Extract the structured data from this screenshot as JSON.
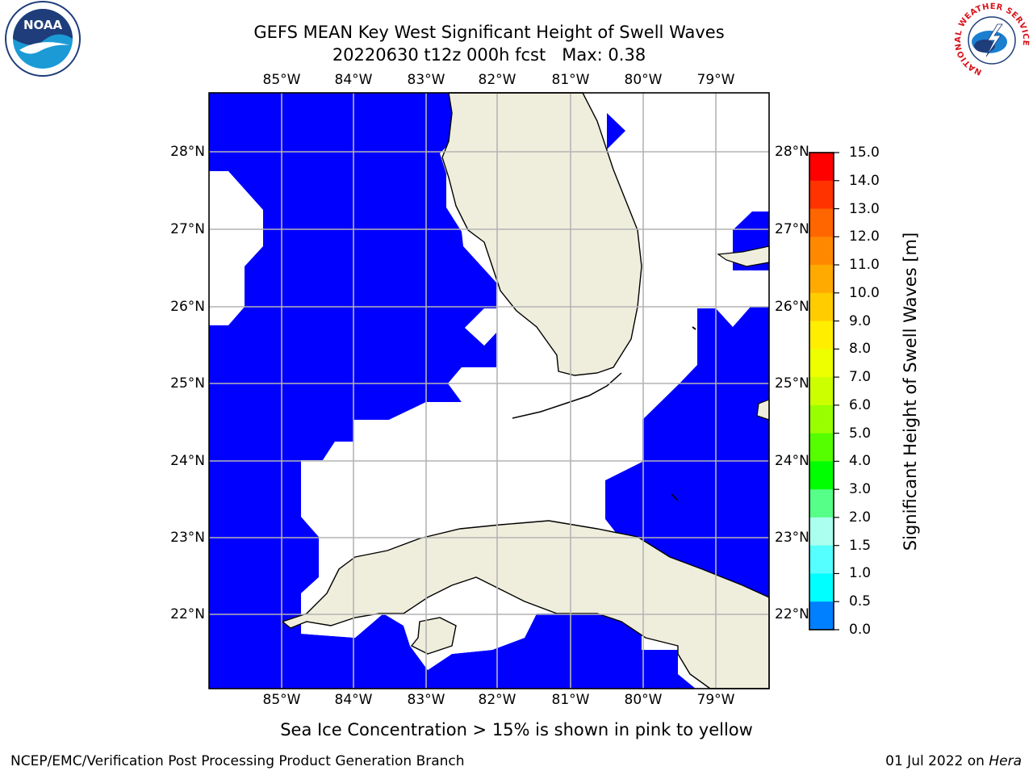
{
  "title": {
    "line1": "GEFS MEAN Key West Significant Height of Swell Waves",
    "line2": "20220630 t12z 000h fcst",
    "max_label": "Max: 0.38"
  },
  "logos": {
    "left": {
      "icon": "noaa-logo",
      "text": "NOAA"
    },
    "right": {
      "icon": "nws-logo",
      "ring_text": "NATIONAL WEATHER SERVICE"
    }
  },
  "map": {
    "lon_labels": [
      "85°W",
      "84°W",
      "83°W",
      "82°W",
      "81°W",
      "80°W",
      "79°W"
    ],
    "lat_labels": [
      "28°N",
      "27°N",
      "26°N",
      "25°N",
      "24°N",
      "23°N",
      "22°N"
    ],
    "colors": {
      "swell_low": "#0000ff",
      "land": "#efeedc",
      "no_data": "#ffffff",
      "grid": "#b4b4b4"
    }
  },
  "colorbar": {
    "label": "Significant Height of Swell Waves [m]",
    "ticks": [
      "15.0",
      "14.0",
      "13.0",
      "12.0",
      "11.0",
      "10.0",
      "9.0",
      "8.0",
      "7.0",
      "6.0",
      "5.0",
      "4.0",
      "3.0",
      "2.0",
      "1.5",
      "1.0",
      "0.5",
      "0.0"
    ],
    "colors": [
      "#ff0000",
      "#ff3300",
      "#ff6600",
      "#ff8800",
      "#ffaa00",
      "#ffcc00",
      "#ffee00",
      "#eeff00",
      "#ccff00",
      "#99ff00",
      "#55ff00",
      "#00ff00",
      "#55ff88",
      "#aaffee",
      "#55ffff",
      "#00ffff",
      "#0080ff",
      "#0000ff"
    ]
  },
  "note": "Sea Ice Concentration > 15% is shown in pink to yellow",
  "footer": {
    "left": "NCEP/EMC/Verification Post Processing Product Generation Branch",
    "right_date": "01 Jul 2022 on ",
    "right_host": "Hera"
  }
}
